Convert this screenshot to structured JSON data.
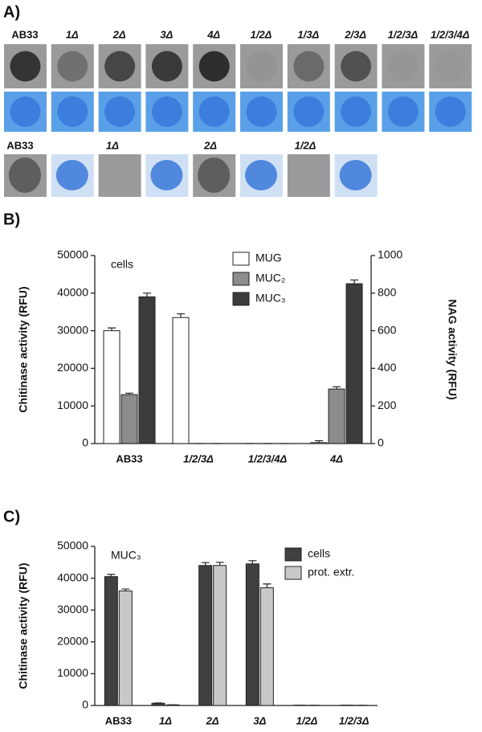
{
  "panel_a": {
    "label": "A)",
    "row1_labels": [
      "AB33",
      "1Δ",
      "2Δ",
      "3Δ",
      "4Δ",
      "1/2Δ",
      "1/3Δ",
      "2/3Δ",
      "1/2/3Δ",
      "1/2/3/4Δ"
    ],
    "row2_labels": [
      "AB33",
      "1Δ",
      "2Δ",
      "1/2Δ"
    ]
  },
  "chart_data": [
    {
      "type": "bar",
      "panel_label": "B)",
      "annotation": "cells",
      "ylabel": "Chitinase activity (RFU)",
      "y2label": "NAG activity (RFU)",
      "categories": [
        "AB33",
        "1/2/3Δ",
        "1/2/3/4Δ",
        "4Δ"
      ],
      "series": [
        {
          "name": "MUG",
          "color": "#ffffff",
          "axis": "y2",
          "values": [
            600,
            670,
            0,
            5
          ],
          "errors": [
            15,
            20,
            0,
            10
          ]
        },
        {
          "name": "MUC₂",
          "color": "#8c8c8c",
          "values": [
            13000,
            0,
            0,
            14500
          ],
          "errors": [
            400,
            0,
            0,
            600
          ]
        },
        {
          "name": "MUC₃",
          "color": "#3c3c3c",
          "values": [
            39000,
            0,
            0,
            42500
          ],
          "errors": [
            1000,
            0,
            0,
            1000
          ]
        }
      ],
      "ylim": [
        0,
        50000
      ],
      "yticks": [
        0,
        10000,
        20000,
        30000,
        40000,
        50000
      ],
      "y2lim": [
        0,
        1000
      ],
      "y2ticks": [
        0,
        200,
        400,
        600,
        800,
        1000
      ],
      "legend": "top"
    },
    {
      "type": "bar",
      "panel_label": "C)",
      "annotation": "MUC₃",
      "ylabel": "Chitinase activity (RFU)",
      "categories": [
        "AB33",
        "1Δ",
        "2Δ",
        "3Δ",
        "1/2Δ",
        "1/2/3Δ"
      ],
      "series": [
        {
          "name": "cells",
          "color": "#404040",
          "values": [
            40500,
            700,
            44000,
            44500,
            100,
            100
          ],
          "errors": [
            700,
            100,
            900,
            1000,
            0,
            0
          ]
        },
        {
          "name": "prot. extr.",
          "color": "#c8c8c8",
          "values": [
            36000,
            200,
            44000,
            37000,
            50,
            50
          ],
          "errors": [
            600,
            0,
            1000,
            1200,
            0,
            0
          ]
        }
      ],
      "ylim": [
        0,
        50000
      ],
      "yticks": [
        0,
        10000,
        20000,
        30000,
        40000,
        50000
      ],
      "legend": "top right"
    }
  ]
}
